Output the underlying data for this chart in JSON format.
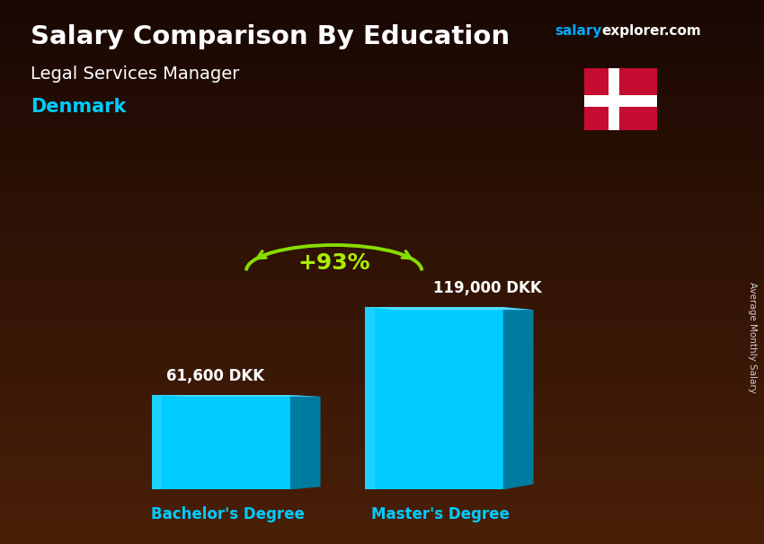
{
  "title": "Salary Comparison By Education",
  "subtitle_job": "Legal Services Manager",
  "subtitle_country": "Denmark",
  "ylabel": "Average Monthly Salary",
  "categories": [
    "Bachelor's Degree",
    "Master's Degree"
  ],
  "values": [
    61600,
    119000
  ],
  "value_labels": [
    "61,600 DKK",
    "119,000 DKK"
  ],
  "pct_change": "+93%",
  "bar_color_main": "#00CCFF",
  "bar_color_dark": "#007BA0",
  "bar_color_top": "#55DDFF",
  "bg_grad_top": "#4a2008",
  "bg_grad_bottom": "#1a0803",
  "title_color": "#FFFFFF",
  "subtitle_job_color": "#FFFFFF",
  "subtitle_country_color": "#00CCFF",
  "label_color": "#FFFFFF",
  "xticklabel_color": "#00CCFF",
  "arrow_color": "#88DD00",
  "pct_color": "#AAEE00",
  "watermark_salary_color": "#00AAFF",
  "watermark_explorer_color": "#FFFFFF",
  "rotated_label_color": "#CCCCCC",
  "flag_red": "#C60C30",
  "figsize": [
    8.5,
    6.06
  ],
  "dpi": 100
}
